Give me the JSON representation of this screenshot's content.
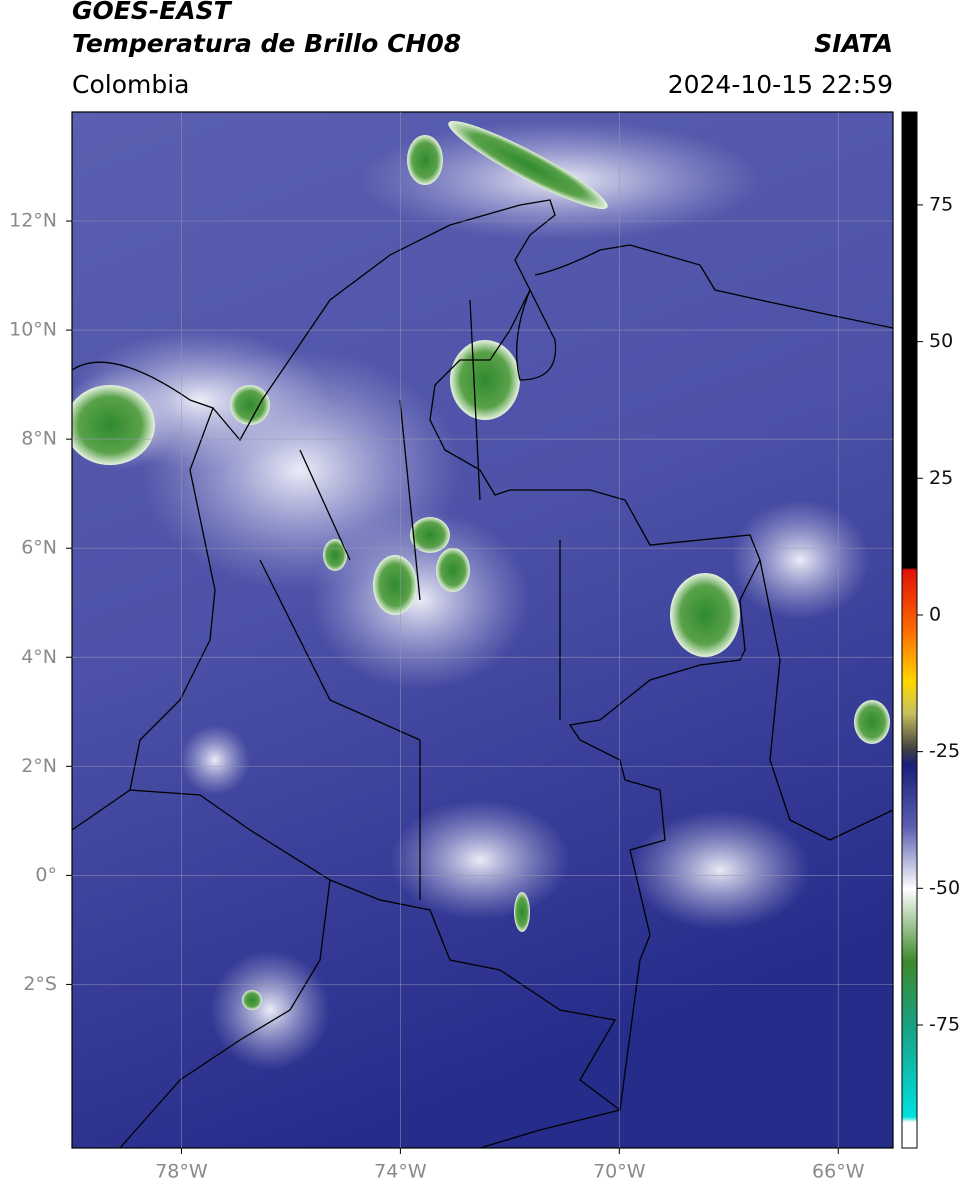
{
  "header": {
    "title": "GOES-EAST",
    "subtitle": "Temperatura de Brillo CH08",
    "source": "SIATA",
    "region": "Colombia",
    "timestamp": "2024-10-15 22:59"
  },
  "map": {
    "xlim": [
      -80,
      -65
    ],
    "ylim": [
      -5,
      14
    ],
    "xticks": [
      {
        "value": -78,
        "label": "78°W"
      },
      {
        "value": -74,
        "label": "74°W"
      },
      {
        "value": -70,
        "label": "70°W"
      },
      {
        "value": -66,
        "label": "66°W"
      }
    ],
    "yticks": [
      {
        "value": 12,
        "label": "12°N"
      },
      {
        "value": 10,
        "label": "10°N"
      },
      {
        "value": 8,
        "label": "8°N"
      },
      {
        "value": 6,
        "label": "6°N"
      },
      {
        "value": 4,
        "label": "4°N"
      },
      {
        "value": 2,
        "label": "2°N"
      },
      {
        "value": 0,
        "label": "0°"
      },
      {
        "value": -2,
        "label": "2°S"
      }
    ],
    "grid": true
  },
  "colorbar": {
    "lim": [
      -97.5,
      92
    ],
    "ticks": [
      75,
      50,
      25,
      0,
      -25,
      -50,
      -75
    ]
  }
}
